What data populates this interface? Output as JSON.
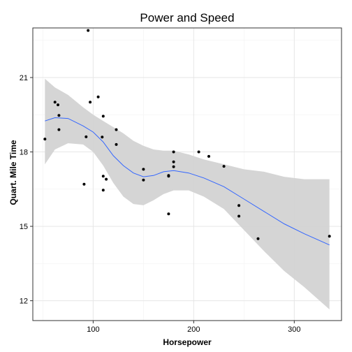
{
  "chart_data": {
    "type": "scatter",
    "title": "Power and Speed",
    "xlabel": "Horsepower",
    "ylabel": "Quart. Mile Time",
    "xlim": [
      40,
      347
    ],
    "ylim": [
      11.2,
      23.0
    ],
    "xticks": [
      100,
      200,
      300
    ],
    "yticks": [
      12,
      15,
      18,
      21
    ],
    "grid": true,
    "colors": {
      "points": "#000000",
      "smooth_line": "#3366ff",
      "ribbon": "#d3d3d3",
      "border": "#333333",
      "grid_major": "#e6e6e6",
      "grid_minor": "#f2f2f2"
    },
    "points": [
      {
        "x": 52,
        "y": 18.52
      },
      {
        "x": 62,
        "y": 20.01
      },
      {
        "x": 65,
        "y": 19.9
      },
      {
        "x": 66,
        "y": 19.47
      },
      {
        "x": 66,
        "y": 18.9
      },
      {
        "x": 91,
        "y": 16.7
      },
      {
        "x": 93,
        "y": 18.61
      },
      {
        "x": 95,
        "y": 22.9
      },
      {
        "x": 97,
        "y": 20.01
      },
      {
        "x": 105,
        "y": 20.22
      },
      {
        "x": 109,
        "y": 18.6
      },
      {
        "x": 110,
        "y": 19.44
      },
      {
        "x": 110,
        "y": 17.02
      },
      {
        "x": 110,
        "y": 16.46
      },
      {
        "x": 113,
        "y": 16.9
      },
      {
        "x": 123,
        "y": 18.9
      },
      {
        "x": 123,
        "y": 18.3
      },
      {
        "x": 150,
        "y": 17.3
      },
      {
        "x": 150,
        "y": 16.87
      },
      {
        "x": 175,
        "y": 17.05
      },
      {
        "x": 175,
        "y": 17.02
      },
      {
        "x": 175,
        "y": 15.5
      },
      {
        "x": 180,
        "y": 18.0
      },
      {
        "x": 180,
        "y": 17.6
      },
      {
        "x": 180,
        "y": 17.4
      },
      {
        "x": 205,
        "y": 18.0
      },
      {
        "x": 215,
        "y": 17.82
      },
      {
        "x": 230,
        "y": 17.42
      },
      {
        "x": 245,
        "y": 15.84
      },
      {
        "x": 245,
        "y": 15.41
      },
      {
        "x": 264,
        "y": 14.5
      },
      {
        "x": 335,
        "y": 14.6
      }
    ],
    "smooth": {
      "x": [
        52,
        62,
        75,
        90,
        100,
        110,
        120,
        130,
        140,
        150,
        160,
        170,
        180,
        195,
        210,
        230,
        250,
        270,
        290,
        310,
        335
      ],
      "y": [
        19.25,
        19.38,
        19.35,
        19.05,
        18.8,
        18.4,
        17.85,
        17.45,
        17.15,
        17.0,
        17.05,
        17.2,
        17.25,
        17.15,
        16.95,
        16.6,
        16.1,
        15.6,
        15.1,
        14.7,
        14.25
      ],
      "lower": [
        17.5,
        18.1,
        18.35,
        18.3,
        18.0,
        17.45,
        16.75,
        16.2,
        15.9,
        15.85,
        16.05,
        16.3,
        16.45,
        16.45,
        16.2,
        15.7,
        14.85,
        14.0,
        13.2,
        12.55,
        11.65
      ],
      "upper": [
        20.95,
        20.6,
        20.3,
        19.8,
        19.5,
        19.25,
        19.0,
        18.75,
        18.45,
        18.25,
        18.1,
        18.05,
        18.05,
        17.9,
        17.7,
        17.5,
        17.3,
        17.2,
        17.0,
        16.9,
        16.9
      ]
    }
  }
}
